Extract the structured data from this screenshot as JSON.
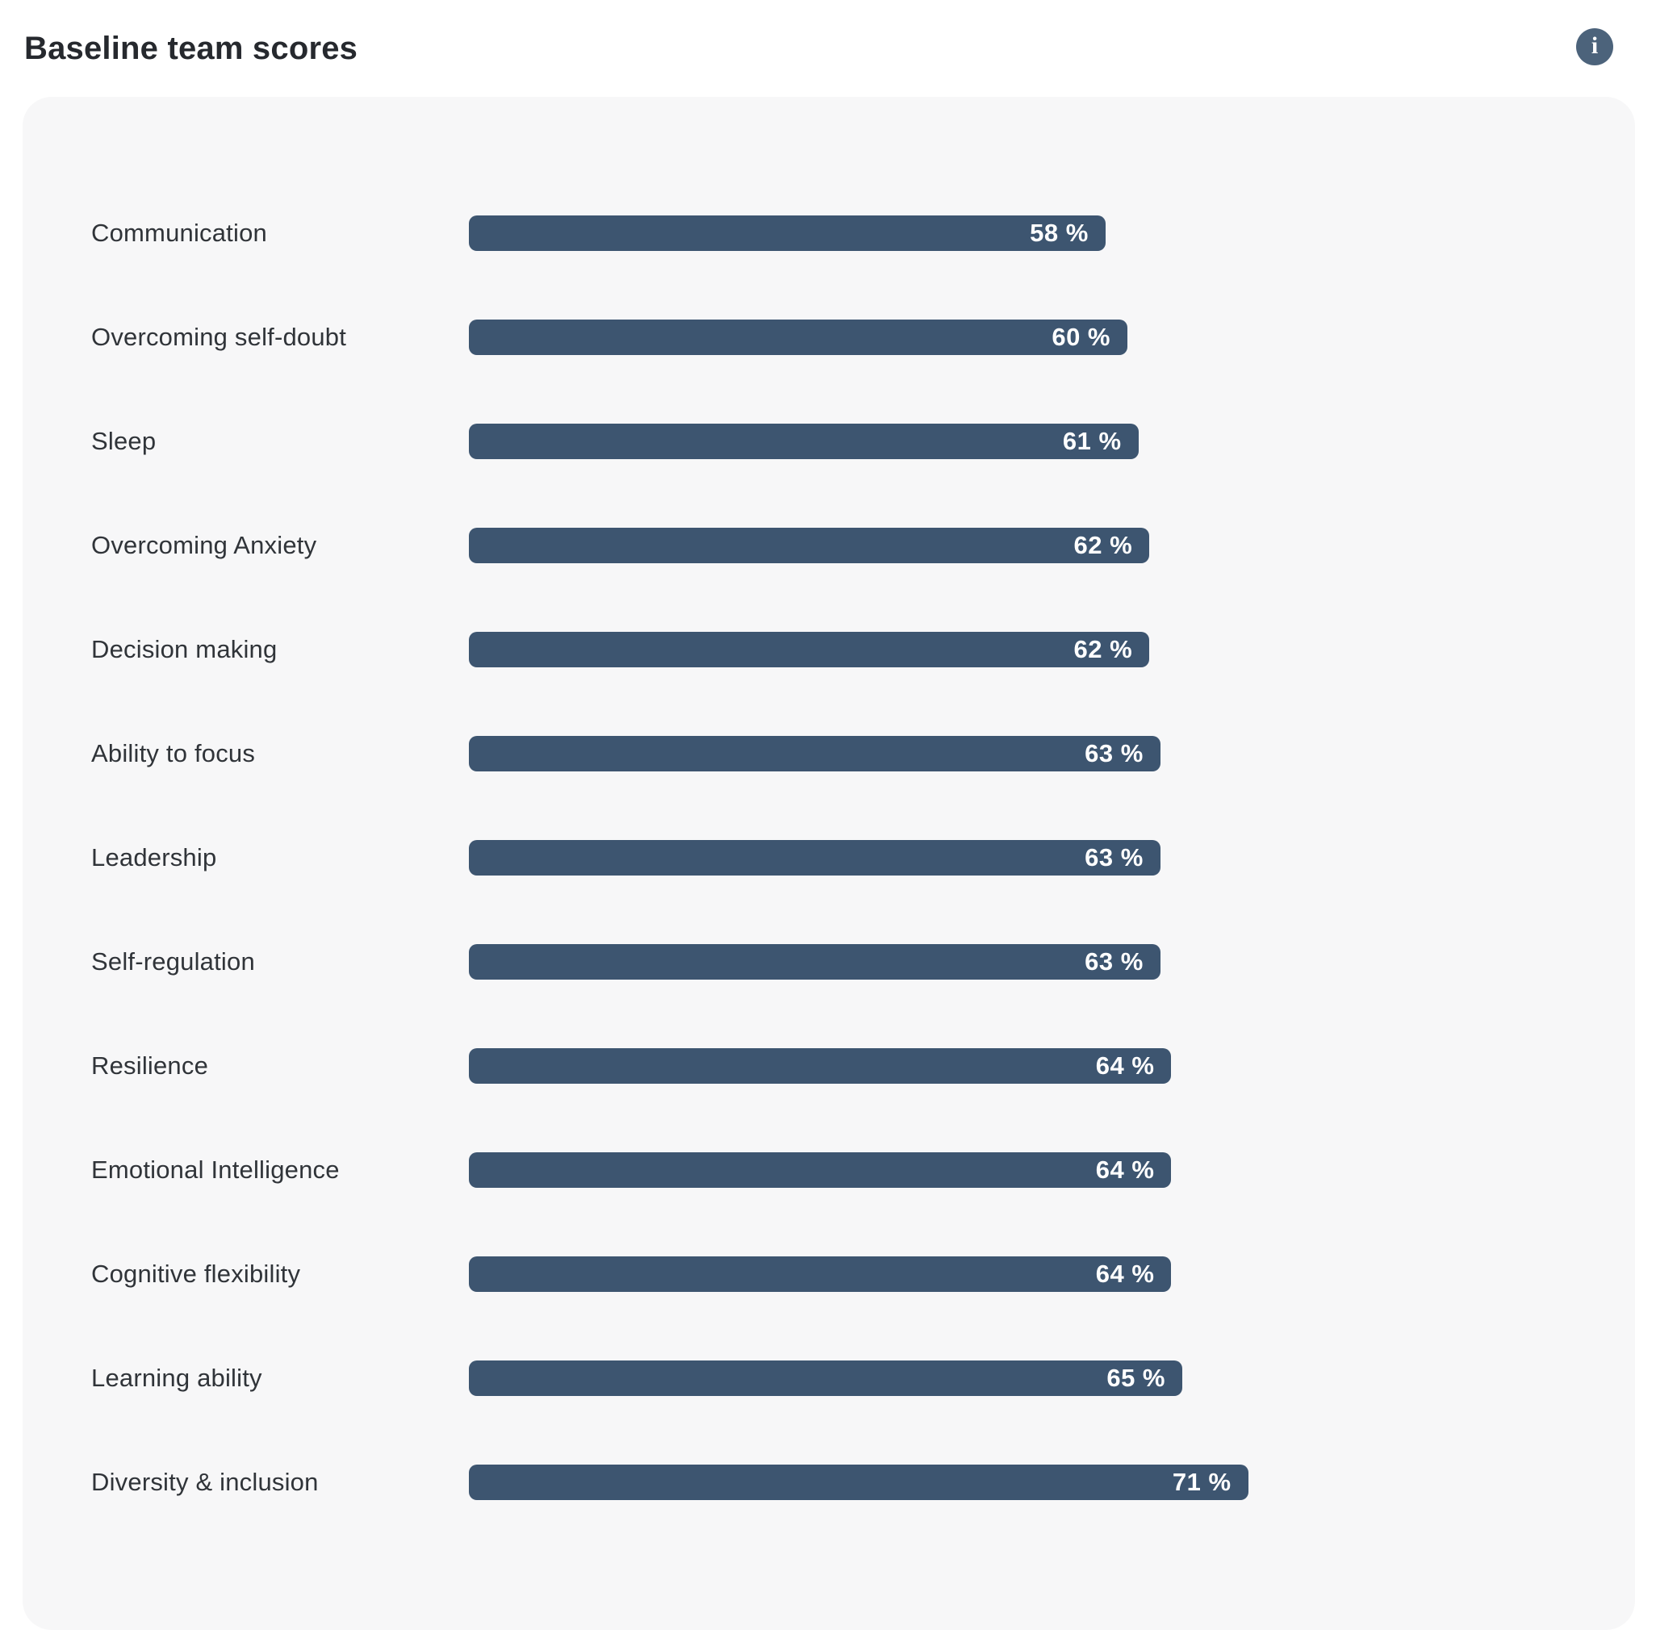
{
  "header": {
    "title": "Baseline team scores"
  },
  "icons": {
    "info": "i"
  },
  "colors": {
    "bar": "#3d5570",
    "info_button": "#4c637b",
    "card_bg": "#f7f7f8",
    "label": "#303439"
  },
  "chart_data": {
    "type": "bar",
    "orientation": "horizontal",
    "title": "Baseline team scores",
    "categories": [
      "Communication",
      "Overcoming self-doubt",
      "Sleep",
      "Overcoming Anxiety",
      "Decision making",
      "Ability to focus",
      "Leadership",
      "Self-regulation",
      "Resilience",
      "Emotional Intelligence",
      "Cognitive flexibility",
      "Learning ability",
      "Diversity & inclusion"
    ],
    "values": [
      58,
      60,
      61,
      62,
      62,
      63,
      63,
      63,
      64,
      64,
      64,
      65,
      71
    ],
    "value_suffix": " %",
    "xlim": [
      0,
      100
    ],
    "grid": false,
    "legend": false,
    "value_labels_position": "inside-end"
  }
}
